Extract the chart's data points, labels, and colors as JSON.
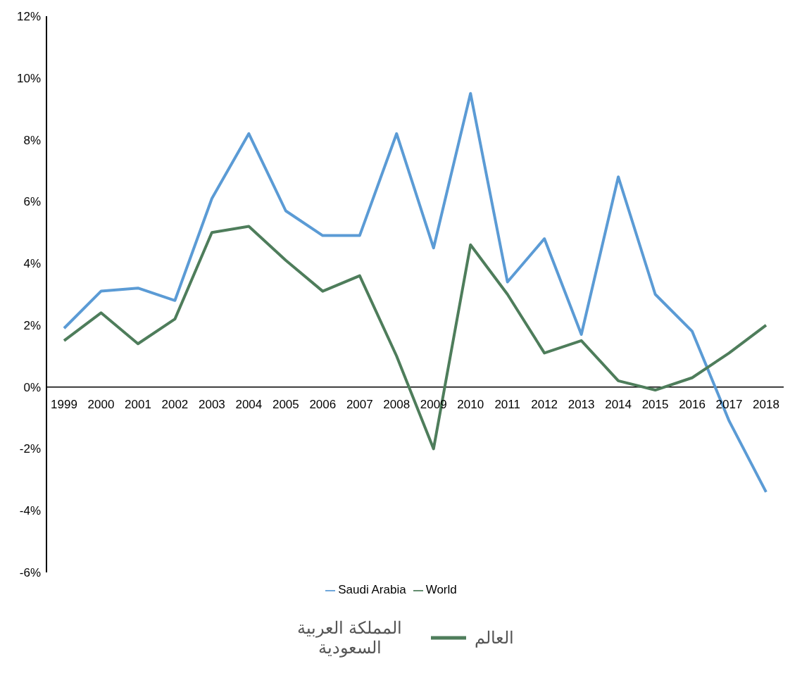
{
  "chart_data": {
    "type": "line",
    "categories": [
      "1999",
      "2000",
      "2001",
      "2002",
      "2003",
      "2004",
      "2005",
      "2006",
      "2007",
      "2008",
      "2009",
      "2010",
      "2011",
      "2012",
      "2013",
      "2014",
      "2015",
      "2016",
      "2017",
      "2018"
    ],
    "series": [
      {
        "name": "Saudi Arabia",
        "color": "#5b9bd5",
        "values": [
          1.9,
          3.1,
          3.2,
          2.8,
          6.1,
          8.2,
          5.7,
          4.9,
          4.9,
          8.2,
          4.5,
          9.5,
          3.4,
          4.8,
          1.7,
          6.8,
          3.0,
          1.8,
          -1.1,
          -3.4
        ]
      },
      {
        "name": "World",
        "color": "#4e7d5b",
        "values": [
          1.5,
          2.4,
          1.4,
          2.2,
          5.0,
          5.2,
          4.1,
          3.1,
          3.6,
          1.0,
          -2.0,
          4.6,
          3.0,
          1.1,
          1.5,
          0.2,
          -0.1,
          0.3,
          1.1,
          2.0
        ]
      }
    ],
    "ylim": [
      -6,
      12
    ],
    "yticks": [
      {
        "value": -6,
        "label": "-6%"
      },
      {
        "value": -4,
        "label": "-4%"
      },
      {
        "value": -2,
        "label": "-2%"
      },
      {
        "value": 0,
        "label": "0%"
      },
      {
        "value": 2,
        "label": "2%"
      },
      {
        "value": 4,
        "label": "4%"
      },
      {
        "value": 6,
        "label": "6%"
      },
      {
        "value": 8,
        "label": "8%"
      },
      {
        "value": 10,
        "label": "10%"
      },
      {
        "value": 12,
        "label": "12%"
      }
    ],
    "grid": false,
    "legend": "bottom",
    "marker": "none",
    "line_style": "solid",
    "annotations": [
      "المملكة العربية السعودية",
      "العالم"
    ]
  }
}
